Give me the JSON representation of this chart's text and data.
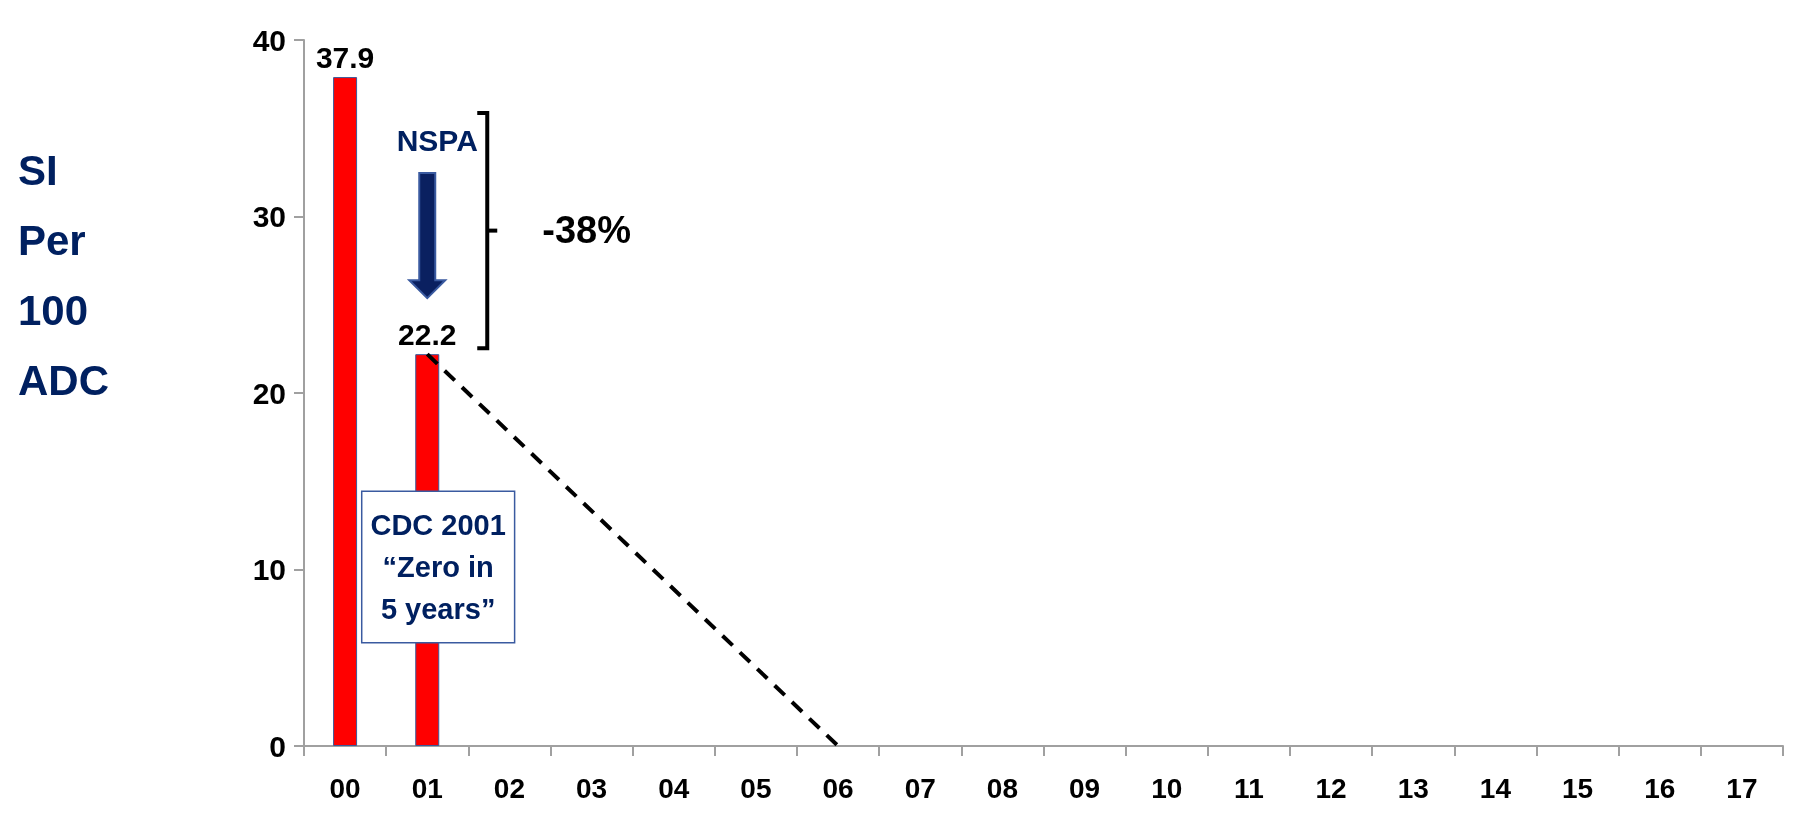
{
  "chart_data": {
    "type": "bar",
    "ylabel": "SI Per 100 ADC",
    "categories": [
      "00",
      "01",
      "02",
      "03",
      "04",
      "05",
      "06",
      "07",
      "08",
      "09",
      "10",
      "11",
      "12",
      "13",
      "14",
      "15",
      "16",
      "17"
    ],
    "series": [
      {
        "color": "#ff0000",
        "values": [
          37.9,
          22.2,
          null,
          null,
          null,
          null,
          null,
          null,
          null,
          null,
          null,
          null,
          null,
          null,
          null,
          null,
          null,
          null
        ],
        "value_labels": [
          "37.9",
          "22.2",
          null,
          null,
          null,
          null,
          null,
          null,
          null,
          null,
          null,
          null,
          null,
          null,
          null,
          null,
          null,
          null
        ]
      },
      {
        "type": "line",
        "color": "#000000",
        "x": [
          "01",
          "06"
        ],
        "values": [
          22.2,
          0
        ],
        "line_style": "dashed",
        "marker": "none"
      }
    ],
    "ylim": [
      0,
      40
    ],
    "yticks": [
      0,
      10,
      20,
      30,
      40
    ],
    "grid": false,
    "annotations": [
      "NSPA",
      "-38%",
      "CDC 2001 “Zero in 5 years”"
    ]
  }
}
